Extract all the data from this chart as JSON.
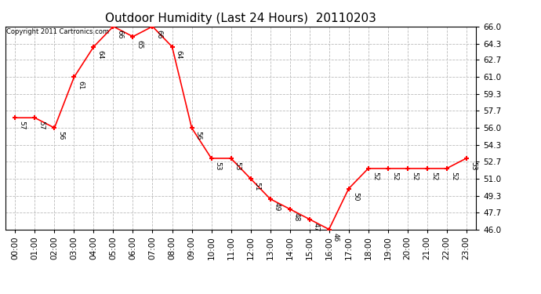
{
  "title": "Outdoor Humidity (Last 24 Hours)  20110203",
  "copyright_text": "Copyright 2011 Cartronics.com",
  "hours": [
    0,
    1,
    2,
    3,
    4,
    5,
    6,
    7,
    8,
    9,
    10,
    11,
    12,
    13,
    14,
    15,
    16,
    17,
    18,
    19,
    20,
    21,
    22,
    23
  ],
  "values": [
    57,
    57,
    56,
    61,
    64,
    66,
    65,
    66,
    64,
    56,
    53,
    53,
    51,
    49,
    48,
    47,
    46,
    50,
    52,
    52,
    52,
    52,
    52,
    53
  ],
  "x_labels": [
    "00:00",
    "01:00",
    "02:00",
    "03:00",
    "04:00",
    "05:00",
    "06:00",
    "07:00",
    "08:00",
    "09:00",
    "10:00",
    "11:00",
    "12:00",
    "13:00",
    "14:00",
    "15:00",
    "16:00",
    "17:00",
    "18:00",
    "19:00",
    "20:00",
    "21:00",
    "22:00",
    "23:00"
  ],
  "y_ticks": [
    46.0,
    47.7,
    49.3,
    51.0,
    52.7,
    54.3,
    56.0,
    57.7,
    59.3,
    61.0,
    62.7,
    64.3,
    66.0
  ],
  "ylim": [
    46.0,
    66.0
  ],
  "line_color": "#ff0000",
  "marker_color": "#ff0000",
  "bg_color": "#ffffff",
  "grid_color": "#bbbbbb",
  "label_fontsize": 7.5,
  "title_fontsize": 11,
  "annotation_fontsize": 6.5,
  "copyright_fontsize": 6
}
